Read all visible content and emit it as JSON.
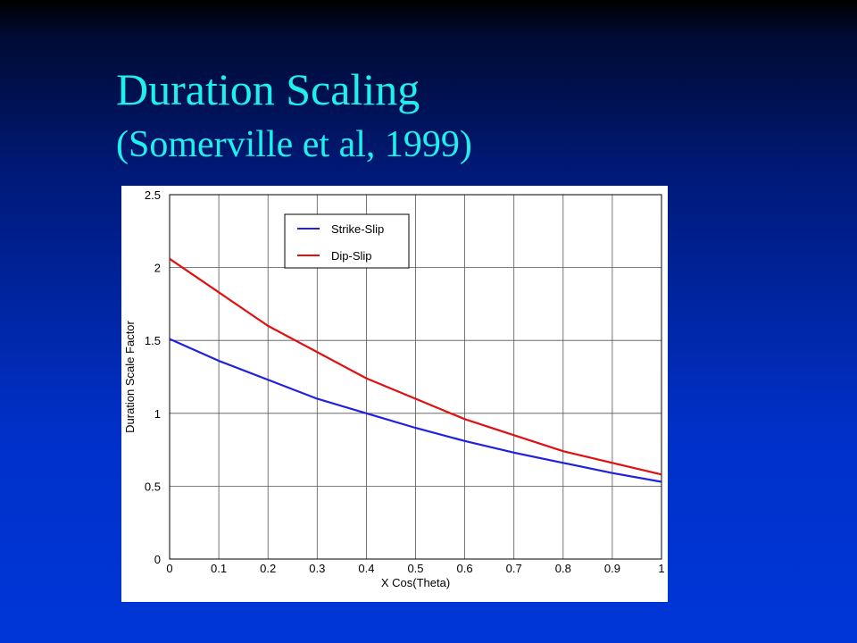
{
  "slide": {
    "title": "Duration Scaling",
    "subtitle": "(Somerville et al, 1999)"
  },
  "chart_data": {
    "type": "line",
    "title": "",
    "xlabel": "X Cos(Theta)",
    "ylabel": "Duration Scale Factor",
    "xlim": [
      0,
      1
    ],
    "ylim": [
      0,
      2.5
    ],
    "x_ticks": [
      "0",
      "0.1",
      "0.2",
      "0.3",
      "0.4",
      "0.5",
      "0.6",
      "0.7",
      "0.8",
      "0.9",
      "1"
    ],
    "y_ticks": [
      "0",
      "0.5",
      "1",
      "1.5",
      "2",
      "2.5"
    ],
    "grid": true,
    "legend_position": "top-center",
    "series": [
      {
        "name": "Strike-Slip",
        "color": "#2020e0",
        "x": [
          0,
          0.1,
          0.2,
          0.3,
          0.4,
          0.5,
          0.6,
          0.7,
          0.8,
          0.9,
          1.0
        ],
        "y": [
          1.51,
          1.36,
          1.23,
          1.1,
          1.0,
          0.9,
          0.81,
          0.73,
          0.66,
          0.59,
          0.53
        ]
      },
      {
        "name": "Dip-Slip",
        "color": "#e01010",
        "x": [
          0,
          0.1,
          0.2,
          0.3,
          0.4,
          0.5,
          0.6,
          0.7,
          0.8,
          0.9,
          1.0
        ],
        "y": [
          2.06,
          1.83,
          1.6,
          1.42,
          1.24,
          1.1,
          0.96,
          0.85,
          0.74,
          0.66,
          0.58
        ]
      }
    ]
  }
}
